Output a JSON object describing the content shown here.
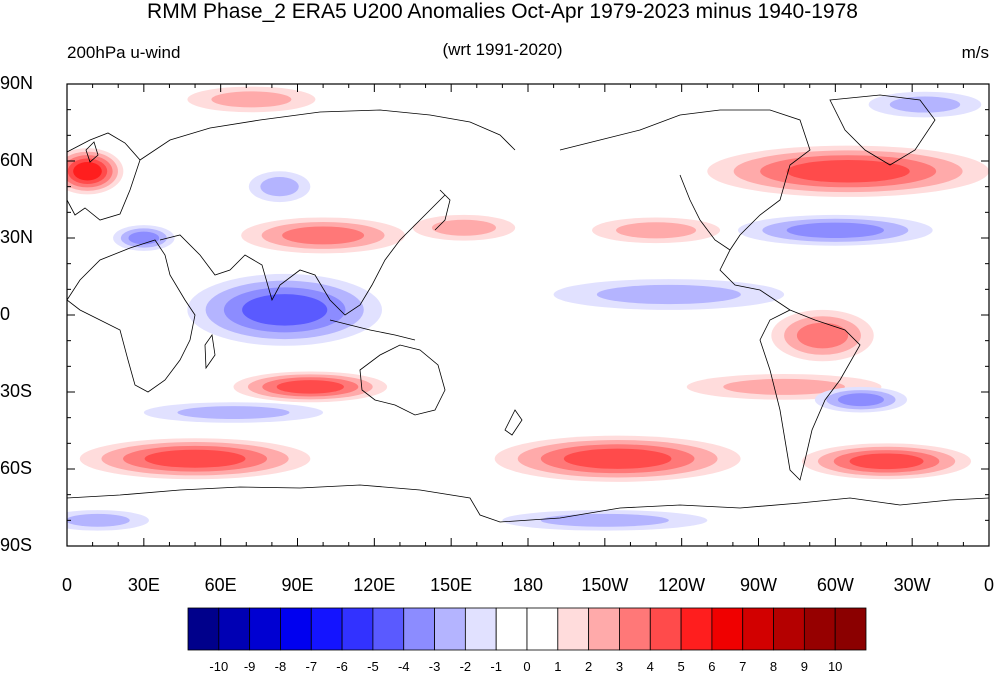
{
  "title": "RMM Phase_2 ERA5 U200 Anomalies Oct-Apr 1979-2023 minus 1940-1978",
  "subtitles": {
    "left": "200hPa u-wind",
    "center": "(wrt 1991-2020)",
    "right": "m/s"
  },
  "axes": {
    "y_labels": [
      "90N",
      "60N",
      "30N",
      "0",
      "30S",
      "60S",
      "90S"
    ],
    "x_labels": [
      "0",
      "30E",
      "60E",
      "90E",
      "120E",
      "150E",
      "180",
      "150W",
      "120W",
      "90W",
      "60W",
      "30W",
      "0"
    ]
  },
  "colorbar": {
    "labels": [
      "-10",
      "-9",
      "-8",
      "-7",
      "-6",
      "-5",
      "-4",
      "-3",
      "-2",
      "-1",
      "0",
      "1",
      "2",
      "3",
      "4",
      "5",
      "6",
      "7",
      "8",
      "9",
      "10"
    ],
    "colors": [
      "#00008b",
      "#0000b4",
      "#0000d2",
      "#0000f0",
      "#1414ff",
      "#3232ff",
      "#5a5aff",
      "#8c8cff",
      "#b4b4ff",
      "#e1e1ff",
      "#ffffff",
      "#ffffff",
      "#ffdcdc",
      "#ffaaaa",
      "#ff7878",
      "#ff4b4b",
      "#ff1e1e",
      "#f00000",
      "#d20000",
      "#b40000",
      "#960000",
      "#8b0000"
    ]
  },
  "map": {
    "projection": "cylindrical-equidistant",
    "center_longitude": 180,
    "lat_range": [
      -90,
      90
    ],
    "anomaly_features": [
      {
        "lon": 8,
        "lat": 56,
        "rx": 14,
        "ry": 9,
        "value": 5
      },
      {
        "lon": 30,
        "lat": 30,
        "rx": 12,
        "ry": 5,
        "value": -3
      },
      {
        "lon": 100,
        "lat": 31,
        "rx": 32,
        "ry": 7,
        "value": 3
      },
      {
        "lon": 83,
        "lat": 50,
        "rx": 12,
        "ry": 6,
        "value": -1.5
      },
      {
        "lon": 72,
        "lat": 84,
        "rx": 25,
        "ry": 5,
        "value": 1.5
      },
      {
        "lon": 155,
        "lat": 34,
        "rx": 20,
        "ry": 5,
        "value": 1.5
      },
      {
        "lon": -130,
        "lat": 33,
        "rx": 25,
        "ry": 5,
        "value": 2
      },
      {
        "lon": -55,
        "lat": 56,
        "rx": 55,
        "ry": 10,
        "value": 4
      },
      {
        "lon": -25,
        "lat": 82,
        "rx": 22,
        "ry": 5,
        "value": -1.5
      },
      {
        "lon": -60,
        "lat": 33,
        "rx": 38,
        "ry": 6,
        "value": -3
      },
      {
        "lon": 85,
        "lat": 2,
        "rx": 38,
        "ry": 14,
        "value": -4
      },
      {
        "lon": -125,
        "lat": 8,
        "rx": 45,
        "ry": 6,
        "value": -1.5
      },
      {
        "lon": -65,
        "lat": -8,
        "rx": 20,
        "ry": 10,
        "value": 2.5
      },
      {
        "lon": -80,
        "lat": -28,
        "rx": 38,
        "ry": 5,
        "value": 1.5
      },
      {
        "lon": 95,
        "lat": -28,
        "rx": 30,
        "ry": 6,
        "value": 4
      },
      {
        "lon": 65,
        "lat": -38,
        "rx": 35,
        "ry": 4,
        "value": -2
      },
      {
        "lon": -50,
        "lat": -33,
        "rx": 18,
        "ry": 5,
        "value": -2.5
      },
      {
        "lon": 50,
        "lat": -56,
        "rx": 45,
        "ry": 8,
        "value": 4
      },
      {
        "lon": -145,
        "lat": -56,
        "rx": 48,
        "ry": 9,
        "value": 3.5
      },
      {
        "lon": -40,
        "lat": -57,
        "rx": 33,
        "ry": 7,
        "value": 3.5
      },
      {
        "lon": 12,
        "lat": -80,
        "rx": 20,
        "ry": 4,
        "value": -1.5
      },
      {
        "lon": -150,
        "lat": -80,
        "rx": 40,
        "ry": 4,
        "value": -1.5
      }
    ]
  }
}
